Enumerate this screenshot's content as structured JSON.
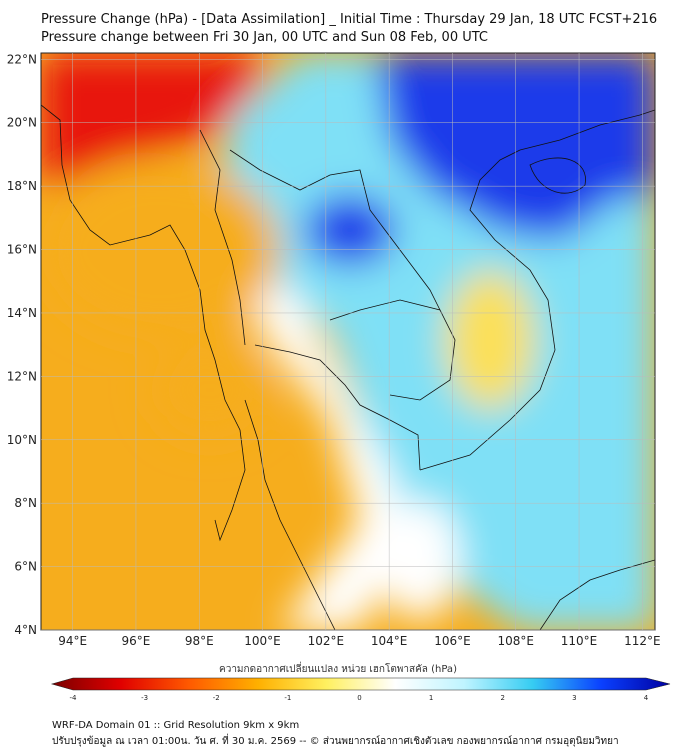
{
  "title": {
    "line1": "Pressure Change (hPa) - [Data Assimilation] _ Initial Time : Thursday 29 Jan, 18 UTC FCST+216",
    "line2": "Pressure change between Fri 30 Jan, 00 UTC and Sun 08 Feb, 00 UTC"
  },
  "map": {
    "lat_ticks": [
      "22°N",
      "20°N",
      "18°N",
      "16°N",
      "14°N",
      "12°N",
      "10°N",
      "8°N",
      "6°N",
      "4°N"
    ],
    "lon_ticks": [
      "94°E",
      "96°E",
      "98°E",
      "100°E",
      "102°E",
      "104°E",
      "106°E",
      "108°E",
      "110°E",
      "112°E"
    ],
    "lon_range": [
      93,
      112.4
    ],
    "lat_range": [
      4,
      22.2
    ],
    "field_colors": {
      "strong_fall": "#e8160c",
      "moderate_fall": "#f6ad1d",
      "weak_fall": "#fbe05a",
      "neutral": "#ffffff",
      "weak_rise": "#7fe0f6",
      "strong_rise": "#1a3bea"
    }
  },
  "colorbar": {
    "caption": "ความกดอากาศเปลี่ยนแปลง หน่วย เฮกโตพาสคัล (hPa)",
    "ticks": [
      "-4",
      "-3",
      "-2",
      "-1",
      "0",
      "1",
      "2",
      "3",
      "4"
    ],
    "range": [
      -4,
      4
    ],
    "colors": [
      "#7a0000",
      "#e00000",
      "#ff5a00",
      "#ffb000",
      "#fff060",
      "#ffffff",
      "#bff4ff",
      "#36ccf2",
      "#0a40ff",
      "#0000a0"
    ]
  },
  "footer": {
    "line1": "WRF-DA Domain 01 :: Grid Resolution 9km x 9km",
    "line2": "ปรับปรุงข้อมูล ณ เวลา 01:00น. วัน ศ. ที่ 30 ม.ค. 2569 -- © ส่วนพยากรณ์อากาศเชิงตัวเลข กองพยากรณ์อากาศ กรมอุตุนิยมวิทยา"
  }
}
